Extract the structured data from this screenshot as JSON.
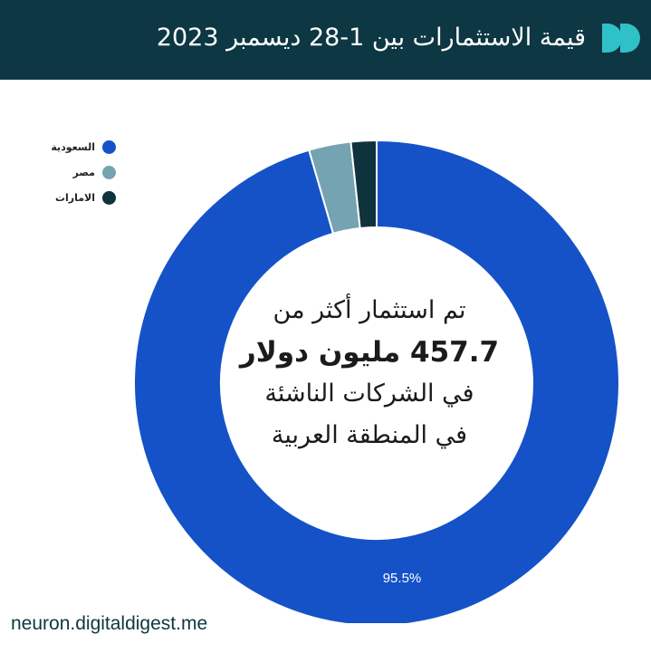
{
  "header": {
    "title": "قيمة الاستثمارات بين 1-28 ديسمبر 2023"
  },
  "colors": {
    "header_bg": "#0d3743",
    "logo_accent": "#2fc1c8",
    "saudi": "#1552c8",
    "egypt": "#75a3b1",
    "uae": "#0f333d"
  },
  "center_text": {
    "line1": "تم استثمار أكثر من",
    "line2": "457.7 مليون دولار",
    "line3": "في الشركات الناشئة",
    "line4": "في المنطقة العربية"
  },
  "footer": {
    "url": "neuron.digitaldigest.me"
  },
  "chart_data": {
    "type": "pie",
    "donut": true,
    "title": "قيمة الاستثمارات بين 1-28 ديسمبر 2023",
    "legend_position": "top-left",
    "series": [
      {
        "name": "السعودية",
        "value": 95.5,
        "label": "95.5%",
        "color": "#1552c8"
      },
      {
        "name": "مصر",
        "value": 2.8,
        "label": "",
        "color": "#75a3b1"
      },
      {
        "name": "الامارات",
        "value": 1.7,
        "label": "",
        "color": "#0f333d"
      }
    ]
  }
}
